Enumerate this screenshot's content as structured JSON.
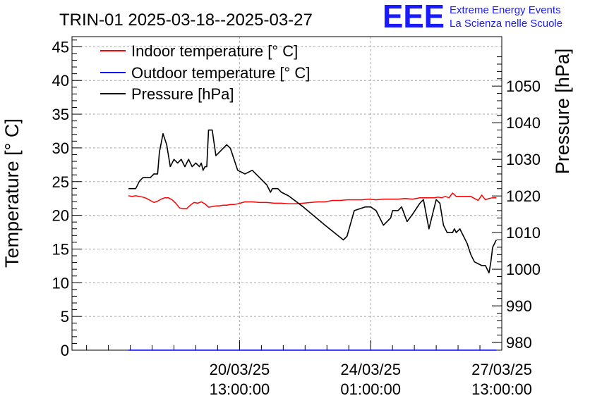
{
  "chart_data": {
    "type": "line",
    "title": "TRIN-01 2025-03-18--2025-03-27",
    "ylabel_left": "Temperature [° C]",
    "ylabel_right": "Pressure [hPa]",
    "xlabel": "",
    "ylim_left": [
      0,
      46.5
    ],
    "ylim_right": [
      977.9,
      1063.5
    ],
    "xlim_hours": [
      -31,
      205
    ],
    "left_ticks": [
      0,
      5,
      10,
      15,
      20,
      25,
      30,
      35,
      40,
      45
    ],
    "right_ticks": [
      980,
      990,
      1000,
      1010,
      1020,
      1030,
      1040,
      1050
    ],
    "x_tick_labels": [
      {
        "hour": 61,
        "line1": "20/03/25",
        "line2": "13:00:00"
      },
      {
        "hour": 133,
        "line1": "24/03/25",
        "line2": "01:00:00"
      },
      {
        "hour": 205,
        "line1": "27/03/25",
        "line2": "13:00:00"
      }
    ],
    "grid": true,
    "legend_position": "top-left",
    "series": [
      {
        "name": "Indoor temperature [° C]",
        "color": "#ff0000",
        "axis": "left",
        "x_hours": [
          0,
          2,
          4,
          6,
          8,
          10,
          12,
          14,
          16,
          18,
          20,
          22,
          24,
          26,
          28,
          30,
          32,
          34,
          36,
          38,
          40,
          42,
          44,
          46,
          48,
          50,
          52,
          54,
          56,
          58,
          60,
          64,
          68,
          72,
          76,
          80,
          84,
          88,
          92,
          96,
          100,
          104,
          108,
          112,
          116,
          120,
          124,
          128,
          132,
          136,
          140,
          144,
          148,
          152,
          156,
          160,
          164,
          168,
          170,
          172,
          174,
          176,
          178,
          180,
          184,
          188,
          190,
          192,
          194,
          196,
          198,
          200,
          202
        ],
        "y": [
          22.9,
          22.8,
          22.9,
          22.8,
          22.7,
          22.5,
          22.2,
          21.9,
          22.1,
          22.4,
          22.6,
          22.6,
          22.3,
          21.8,
          21.1,
          21.0,
          21.0,
          21.5,
          21.9,
          21.8,
          22.0,
          21.7,
          21.2,
          21.3,
          21.4,
          21.4,
          21.5,
          21.5,
          21.6,
          21.6,
          21.7,
          22.0,
          22.0,
          21.9,
          21.9,
          21.8,
          21.8,
          21.7,
          21.7,
          21.8,
          21.9,
          22.0,
          22.0,
          22.2,
          22.2,
          22.3,
          22.3,
          22.3,
          22.4,
          22.3,
          22.4,
          22.4,
          22.4,
          22.5,
          22.4,
          22.6,
          22.6,
          22.6,
          22.7,
          22.6,
          22.8,
          22.6,
          23.3,
          22.8,
          22.8,
          22.8,
          22.5,
          22.2,
          23.0,
          22.3,
          22.5,
          22.6,
          22.6
        ]
      },
      {
        "name": "Outdoor temperature [° C]",
        "color": "#0000ff",
        "axis": "left",
        "x_hours": [
          0,
          40,
          80,
          120,
          160,
          202
        ],
        "y": [
          0,
          0,
          0,
          0,
          0,
          0
        ]
      },
      {
        "name": "Pressure [hPa]",
        "color": "#000000",
        "axis": "right",
        "x_hours": [
          0,
          4,
          6,
          8,
          12,
          14,
          16,
          17,
          19,
          21,
          23,
          25,
          27,
          29,
          31,
          33,
          35,
          37,
          39,
          40,
          41,
          42,
          43,
          44,
          46,
          48,
          50,
          52,
          54,
          56,
          60,
          64,
          68,
          70,
          72,
          76,
          78,
          79,
          82,
          84,
          88,
          96,
          108,
          118,
          120,
          124,
          130,
          133,
          136,
          140,
          144,
          145,
          148,
          150,
          153,
          156,
          160,
          162,
          165,
          167,
          169,
          171,
          173,
          175,
          178,
          179,
          180,
          182,
          186,
          188,
          190,
          194,
          196,
          198,
          199,
          200,
          202
        ],
        "y": [
          1022,
          1022,
          1024,
          1025,
          1025,
          1026,
          1026,
          1032,
          1037,
          1034,
          1028,
          1030,
          1029,
          1030,
          1028,
          1030,
          1028,
          1029,
          1028,
          1029,
          1027,
          1028,
          1028,
          1038,
          1038,
          1031,
          1032,
          1033,
          1034,
          1033,
          1027,
          1026,
          1027,
          1026,
          1025,
          1023,
          1021,
          1022,
          1022,
          1021,
          1020,
          1017,
          1012,
          1008,
          1009,
          1016,
          1017,
          1017,
          1016,
          1012,
          1014,
          1016,
          1016,
          1017,
          1013,
          1015,
          1018,
          1019,
          1011,
          1015,
          1019,
          1018,
          1012,
          1010,
          1010,
          1011,
          1010,
          1011,
          1007,
          1004,
          1002,
          1001,
          1001,
          999,
          1002,
          1006,
          1008
        ]
      }
    ]
  },
  "logo": {
    "letters": "EEE",
    "line1": "Extreme Energy Events",
    "line2": "La Scienza nelle Scuole"
  }
}
